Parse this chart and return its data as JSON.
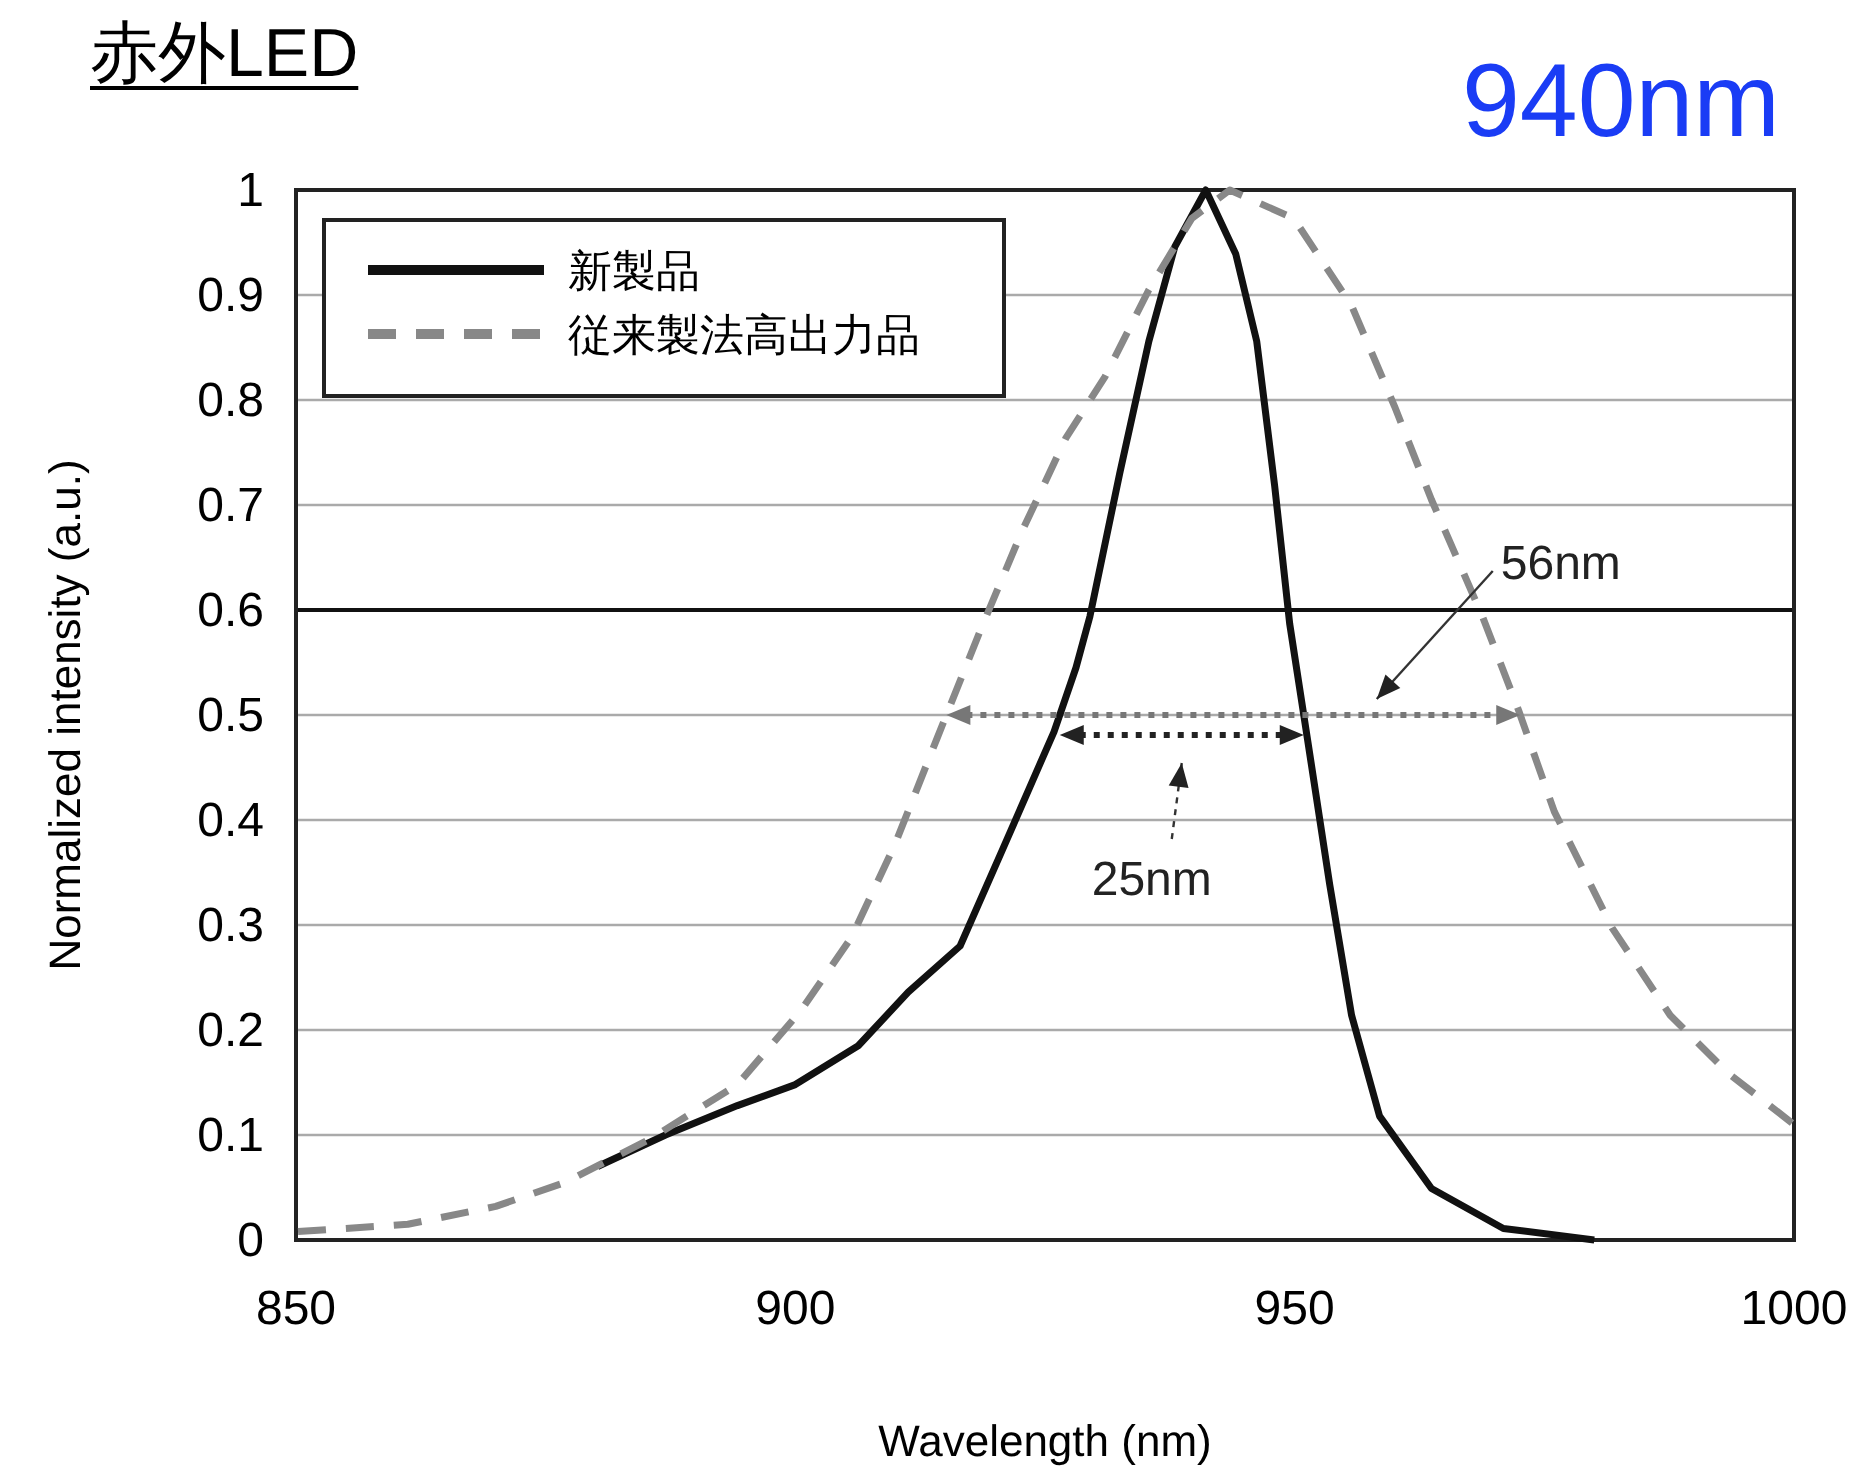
{
  "chart_data": {
    "type": "line",
    "title": "赤外LED",
    "subtitle": "940nm",
    "xlabel": "Wavelength (nm)",
    "ylabel": "Normalized intensity (a.u.)",
    "xlim": [
      850,
      1000
    ],
    "xticks": [
      850,
      900,
      950,
      1000
    ],
    "ylim": [
      0,
      1
    ],
    "yticks": [
      0,
      0.1,
      0.2,
      0.3,
      0.4,
      0.5,
      0.6,
      0.7,
      0.8,
      0.9,
      1
    ],
    "grid": "y",
    "legend": "top left",
    "ref_lines": [
      {
        "axis": "y",
        "value": 0.6,
        "color": "#111111"
      }
    ],
    "annotations": [
      "25nm",
      "56nm"
    ],
    "series": [
      {
        "name": "新製品",
        "color": "#111111",
        "line_style": "solid",
        "x": [
          880.2,
          887,
          894.2,
          900,
          906.3,
          911.3,
          916.5,
          920.8,
          925.9,
          928.1,
          929.5,
          932.5,
          935.4,
          938,
          941.1,
          944.1,
          946.2,
          948,
          949.5,
          951.3,
          953.5,
          955.7,
          958.5,
          963.7,
          970.9,
          980
        ],
        "values": [
          0.07,
          0.1,
          0.128,
          0.148,
          0.185,
          0.236,
          0.28,
          0.373,
          0.484,
          0.545,
          0.594,
          0.731,
          0.856,
          0.946,
          1,
          0.939,
          0.856,
          0.718,
          0.587,
          0.476,
          0.339,
          0.214,
          0.118,
          0.049,
          0.011,
          0
        ]
      },
      {
        "name": "従来製法高出力品",
        "color": "#888888",
        "line_style": "dashed",
        "x": [
          850.2,
          861.2,
          870,
          877,
          885.6,
          894.2,
          900.6,
          905.6,
          909.9,
          914.2,
          918.5,
          922.7,
          927.1,
          931,
          935.4,
          939.7,
          943.5,
          949.9,
          955.7,
          960,
          963.7,
          968.8,
          972.4,
          976,
          981.8,
          987.6,
          993.4,
          1000
        ],
        "values": [
          0.008,
          0.015,
          0.032,
          0.055,
          0.097,
          0.148,
          0.219,
          0.288,
          0.375,
          0.478,
          0.58,
          0.675,
          0.764,
          0.822,
          0.905,
          0.973,
          1,
          0.973,
          0.89,
          0.794,
          0.705,
          0.594,
          0.505,
          0.408,
          0.297,
          0.214,
          0.159,
          0.11
        ]
      }
    ]
  }
}
